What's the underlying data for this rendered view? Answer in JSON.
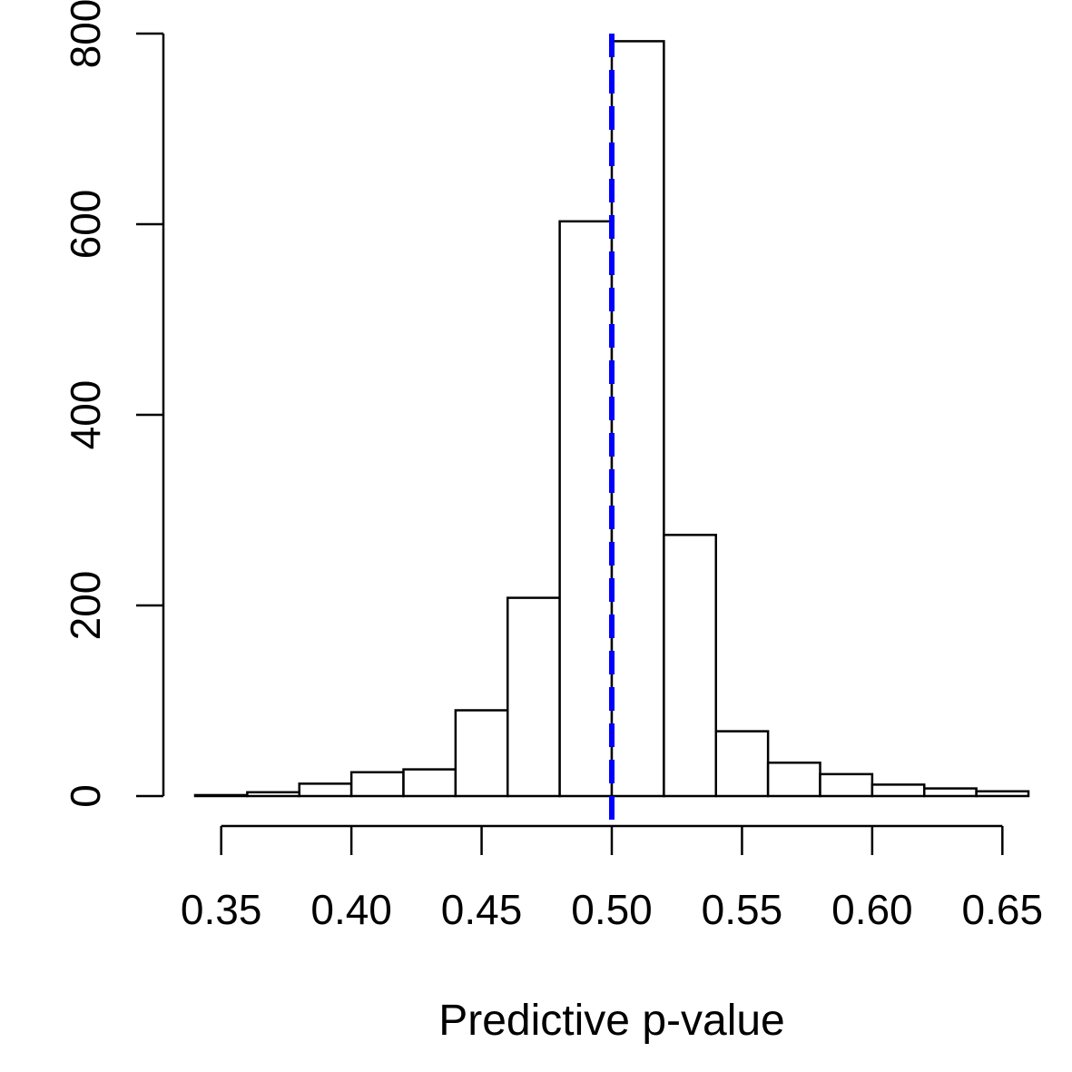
{
  "chart_data": {
    "type": "bar",
    "bin_edges": [
      0.34,
      0.36,
      0.38,
      0.4,
      0.42,
      0.44,
      0.46,
      0.48,
      0.5,
      0.52,
      0.54,
      0.56,
      0.58,
      0.6,
      0.62,
      0.64,
      0.66
    ],
    "values": [
      1,
      4,
      13,
      25,
      28,
      90,
      208,
      603,
      792,
      274,
      68,
      35,
      23,
      12,
      8,
      5
    ],
    "title": "",
    "xlabel": "Predictive p-value",
    "ylabel": "",
    "xlim": [
      0.34,
      0.66
    ],
    "ylim": [
      0,
      800
    ],
    "x_ticks": [
      0.35,
      0.4,
      0.45,
      0.5,
      0.55,
      0.6,
      0.65
    ],
    "x_tick_labels": [
      "0.35",
      "0.40",
      "0.45",
      "0.50",
      "0.55",
      "0.60",
      "0.65"
    ],
    "y_ticks": [
      0,
      200,
      400,
      600,
      800
    ],
    "y_tick_labels": [
      "0",
      "200",
      "400",
      "600",
      "800"
    ],
    "reference_line": {
      "x": 0.5,
      "style": "dashed",
      "color": "#0000ff"
    },
    "bar_fill": "#ffffff",
    "bar_stroke": "#000000",
    "grid": false,
    "legend": "none"
  }
}
